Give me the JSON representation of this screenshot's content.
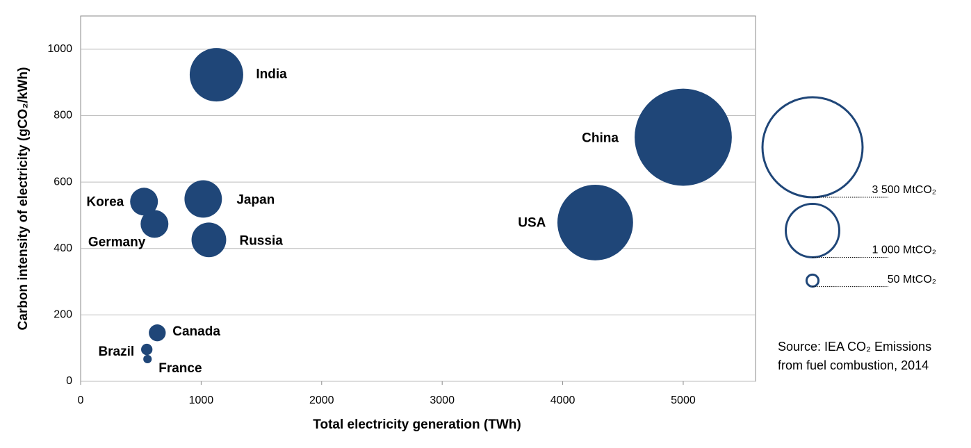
{
  "chart_data": {
    "type": "bubble",
    "xlabel": "Total electricity generation (TWh)",
    "ylabel": "Carbon intensity of electricity (gCO₂/kWh)",
    "xlim": [
      0,
      5600
    ],
    "xticks": [
      0,
      1000,
      2000,
      3000,
      4000,
      5000
    ],
    "ylim": [
      0,
      1100
    ],
    "yticks": [
      0,
      200,
      400,
      600,
      800,
      1000
    ],
    "grid": true,
    "color": "#1f4678",
    "labels": [
      "India",
      "China",
      "USA",
      "Japan",
      "Russia",
      "Korea",
      "Germany",
      "Canada",
      "Brazil",
      "France"
    ],
    "x": [
      1127,
      5000,
      4270,
      1017,
      1064,
      526,
      613,
      636,
      549,
      555
    ],
    "values": [
      923,
      735,
      478,
      549,
      426,
      541,
      474,
      146,
      96,
      67
    ],
    "sizes": [
      1000,
      3300,
      2000,
      490,
      420,
      270,
      270,
      100,
      45,
      25
    ],
    "size_legend": [
      {
        "value": 3500,
        "label": "3 500 MtCO₂"
      },
      {
        "value": 1000,
        "label": "1 000 MtCO₂"
      },
      {
        "value": 50,
        "label": "50 MtCO₂"
      }
    ],
    "source": [
      "Source: IEA CO₂ Emissions",
      "from fuel combustion, 2014"
    ]
  }
}
